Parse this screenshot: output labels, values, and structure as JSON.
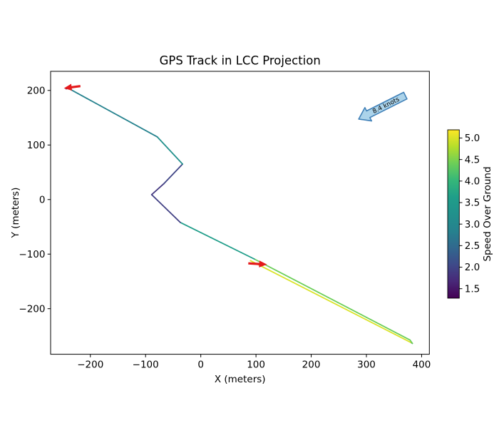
{
  "figure": {
    "background": "#ffffff"
  },
  "chart_data": {
    "type": "line",
    "title": "GPS Track in LCC Projection",
    "xlabel": "X (meters)",
    "ylabel": "Y (meters)",
    "xlim": [
      -272,
      414
    ],
    "ylim": [
      -283.5,
      235
    ],
    "xticks": [
      -200,
      -100,
      0,
      100,
      200,
      300,
      400
    ],
    "yticks": [
      -200,
      -100,
      0,
      100,
      200
    ],
    "grid": false,
    "colormap": "viridis",
    "colorbar": {
      "label": "Speed Over Ground",
      "vmin": 1.28,
      "vmax": 5.19,
      "ticks": [
        1.5,
        2.0,
        2.5,
        3.0,
        3.5,
        4.0,
        4.5,
        5.0
      ]
    },
    "track": {
      "comment_units": "x,y in meters; color = speed over ground (knots) on viridis scale",
      "points": [
        [
          90,
          -112
        ],
        [
          382,
          -262.7
        ],
        [
          383.3,
          -263.6
        ],
        [
          379,
          -257.5
        ],
        [
          97,
          -109
        ],
        [
          -37,
          -42
        ],
        [
          -89,
          9
        ],
        [
          -67,
          29
        ],
        [
          -33,
          65
        ],
        [
          -79,
          115
        ],
        [
          -240,
          204
        ],
        [
          -244,
          203
        ]
      ],
      "segment_speeds": [
        5.0,
        2.7,
        4.4,
        4.4,
        3.6,
        1.95,
        1.85,
        2.0,
        3.2,
        2.85,
        1.4
      ]
    },
    "direction_markers": [
      {
        "name": "track-start-arrow",
        "tail": [
          86,
          -117
        ],
        "tip": [
          120,
          -119
        ],
        "color": "#e41a1c"
      },
      {
        "name": "track-end-arrow",
        "tail": [
          -218,
          208
        ],
        "tip": [
          -248,
          204
        ],
        "color": "#e41a1c"
      }
    ],
    "annotation": {
      "text": "8.4 knots",
      "tail": [
        370.5,
        190.5
      ],
      "tip": [
        286,
        147.5
      ],
      "fill": "#abd3ea",
      "edge": "#4181b8",
      "text_color": "#000000"
    }
  }
}
